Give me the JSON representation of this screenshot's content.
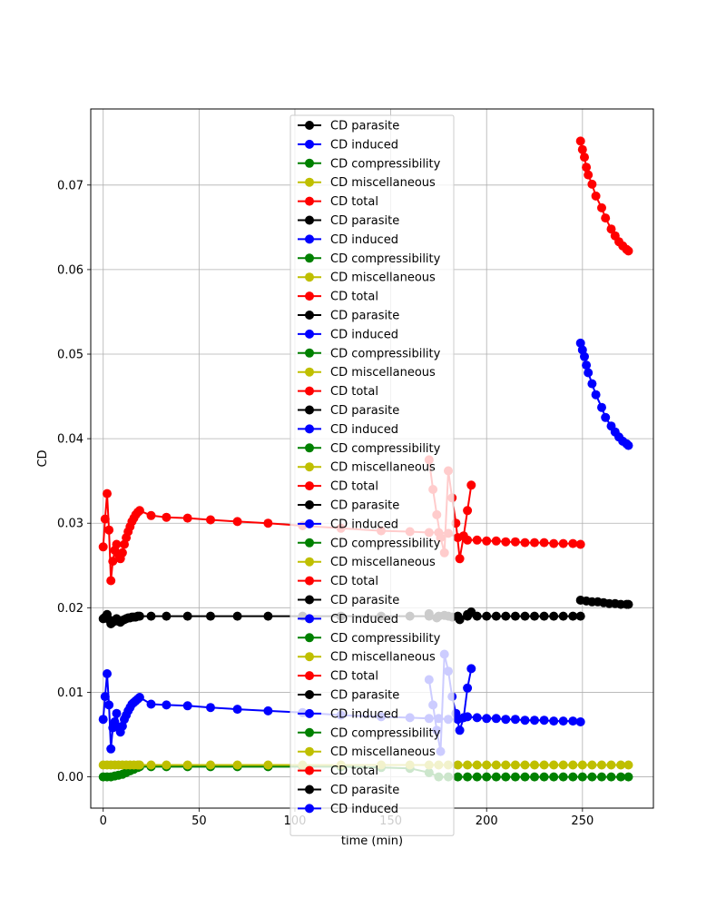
{
  "chart_data": {
    "type": "line",
    "title": "",
    "xlabel": "time (min)",
    "ylabel": "CD",
    "xlim": [
      -6.5,
      287
    ],
    "ylim": [
      -0.0037,
      0.079
    ],
    "xticks": [
      0,
      50,
      100,
      150,
      200,
      250
    ],
    "yticks": [
      0.0,
      0.01,
      0.02,
      0.03,
      0.04,
      0.05,
      0.06,
      0.07
    ],
    "ytick_labels": [
      "0.00",
      "0.01",
      "0.02",
      "0.03",
      "0.04",
      "0.05",
      "0.06",
      "0.07"
    ],
    "grid": true,
    "legend": {
      "placement": "upper-center",
      "entries": [
        {
          "label": "CD parasite",
          "color": "#000000"
        },
        {
          "label": "CD induced",
          "color": "#0000ff"
        },
        {
          "label": "CD compressibility",
          "color": "#008000"
        },
        {
          "label": "CD miscellaneous",
          "color": "#bfbf00"
        },
        {
          "label": "CD total",
          "color": "#ff0000"
        },
        {
          "label": "CD parasite",
          "color": "#000000"
        },
        {
          "label": "CD induced",
          "color": "#0000ff"
        },
        {
          "label": "CD compressibility",
          "color": "#008000"
        },
        {
          "label": "CD miscellaneous",
          "color": "#bfbf00"
        },
        {
          "label": "CD total",
          "color": "#ff0000"
        },
        {
          "label": "CD parasite",
          "color": "#000000"
        },
        {
          "label": "CD induced",
          "color": "#0000ff"
        },
        {
          "label": "CD compressibility",
          "color": "#008000"
        },
        {
          "label": "CD miscellaneous",
          "color": "#bfbf00"
        },
        {
          "label": "CD total",
          "color": "#ff0000"
        },
        {
          "label": "CD parasite",
          "color": "#000000"
        },
        {
          "label": "CD induced",
          "color": "#0000ff"
        },
        {
          "label": "CD compressibility",
          "color": "#008000"
        },
        {
          "label": "CD miscellaneous",
          "color": "#bfbf00"
        },
        {
          "label": "CD total",
          "color": "#ff0000"
        },
        {
          "label": "CD parasite",
          "color": "#000000"
        },
        {
          "label": "CD induced",
          "color": "#0000ff"
        },
        {
          "label": "CD compressibility",
          "color": "#008000"
        },
        {
          "label": "CD miscellaneous",
          "color": "#bfbf00"
        },
        {
          "label": "CD total",
          "color": "#ff0000"
        },
        {
          "label": "CD parasite",
          "color": "#000000"
        },
        {
          "label": "CD induced",
          "color": "#0000ff"
        },
        {
          "label": "CD compressibility",
          "color": "#008000"
        },
        {
          "label": "CD miscellaneous",
          "color": "#bfbf00"
        },
        {
          "label": "CD total",
          "color": "#ff0000"
        },
        {
          "label": "CD parasite",
          "color": "#000000"
        },
        {
          "label": "CD induced",
          "color": "#0000ff"
        },
        {
          "label": "CD compressibility",
          "color": "#008000"
        },
        {
          "label": "CD miscellaneous",
          "color": "#bfbf00"
        },
        {
          "label": "CD total",
          "color": "#ff0000"
        },
        {
          "label": "CD parasite",
          "color": "#000000"
        },
        {
          "label": "CD induced",
          "color": "#0000ff"
        }
      ]
    },
    "series": [
      {
        "name": "CD total",
        "color": "#ff0000",
        "x": [
          0,
          1,
          2,
          3,
          4,
          5,
          6,
          7,
          8,
          9,
          10,
          11,
          12,
          13,
          14,
          15,
          16,
          17,
          18,
          19,
          25,
          33,
          44,
          56,
          70,
          86,
          104,
          124,
          145,
          160,
          170,
          175,
          180,
          185,
          190,
          195,
          200,
          205,
          210,
          215,
          220,
          225,
          230,
          235,
          240,
          245,
          249
        ],
        "y": [
          0.0272,
          0.0305,
          0.0335,
          0.0292,
          0.0232,
          0.0255,
          0.0268,
          0.0275,
          0.0263,
          0.0258,
          0.0265,
          0.0275,
          0.0283,
          0.029,
          0.0296,
          0.0302,
          0.0306,
          0.031,
          0.0313,
          0.0315,
          0.0309,
          0.0307,
          0.0306,
          0.0304,
          0.0302,
          0.03,
          0.0297,
          0.0294,
          0.0291,
          0.029,
          0.0289,
          0.0289,
          0.0288,
          0.0283,
          0.028,
          0.028,
          0.0279,
          0.0279,
          0.0278,
          0.0278,
          0.0277,
          0.0277,
          0.0277,
          0.0276,
          0.0276,
          0.0276,
          0.0275
        ]
      },
      {
        "name": "CD total",
        "color": "#ff0000",
        "x": [
          170,
          172,
          174,
          176,
          178,
          180,
          182,
          184,
          186,
          188,
          190,
          192
        ],
        "y": [
          0.0375,
          0.034,
          0.031,
          0.0283,
          0.0265,
          0.0362,
          0.033,
          0.03,
          0.0258,
          0.0285,
          0.0315,
          0.0345
        ]
      },
      {
        "name": "CD total",
        "color": "#ff0000",
        "x": [
          249,
          250,
          251,
          252,
          253,
          255,
          257,
          260,
          262,
          265,
          267,
          269,
          271,
          273,
          274
        ],
        "y": [
          0.0752,
          0.0742,
          0.0733,
          0.0721,
          0.0712,
          0.0701,
          0.0687,
          0.0673,
          0.0661,
          0.0648,
          0.064,
          0.0633,
          0.0628,
          0.0624,
          0.0622
        ]
      },
      {
        "name": "CD parasite",
        "color": "#000000",
        "x": [
          0,
          1,
          2,
          3,
          4,
          5,
          6,
          7,
          8,
          9,
          10,
          11,
          12,
          13,
          14,
          15,
          16,
          17,
          18,
          19,
          25,
          33,
          44,
          56,
          70,
          86,
          104,
          124,
          145,
          160,
          170,
          175,
          180,
          185,
          190,
          195,
          200,
          205,
          210,
          215,
          220,
          225,
          230,
          235,
          240,
          245,
          249
        ],
        "y": [
          0.0187,
          0.0189,
          0.0192,
          0.0186,
          0.0181,
          0.0183,
          0.0185,
          0.0187,
          0.0184,
          0.0183,
          0.0185,
          0.0186,
          0.0187,
          0.0188,
          0.0188,
          0.0189,
          0.0189,
          0.0189,
          0.019,
          0.019,
          0.019,
          0.019,
          0.019,
          0.019,
          0.019,
          0.019,
          0.019,
          0.019,
          0.019,
          0.019,
          0.019,
          0.019,
          0.019,
          0.019,
          0.019,
          0.019,
          0.019,
          0.019,
          0.019,
          0.019,
          0.019,
          0.019,
          0.019,
          0.019,
          0.019,
          0.019,
          0.019
        ]
      },
      {
        "name": "CD parasite",
        "color": "#000000",
        "x": [
          170,
          174,
          178,
          182,
          186,
          190,
          192
        ],
        "y": [
          0.0193,
          0.0188,
          0.0191,
          0.0189,
          0.0186,
          0.0192,
          0.0195
        ]
      },
      {
        "name": "CD parasite",
        "color": "#000000",
        "x": [
          249,
          252,
          255,
          258,
          261,
          264,
          267,
          270,
          273,
          274
        ],
        "y": [
          0.0209,
          0.0208,
          0.0207,
          0.0207,
          0.0206,
          0.0205,
          0.0205,
          0.0204,
          0.0204,
          0.0204
        ]
      },
      {
        "name": "CD induced",
        "color": "#0000ff",
        "x": [
          0,
          1,
          2,
          3,
          4,
          5,
          6,
          7,
          8,
          9,
          10,
          11,
          12,
          13,
          14,
          15,
          16,
          17,
          18,
          19,
          25,
          33,
          44,
          56,
          70,
          86,
          104,
          124,
          145,
          160,
          170,
          175,
          180,
          185,
          190,
          195,
          200,
          205,
          210,
          215,
          220,
          225,
          230,
          235,
          240,
          245,
          249
        ],
        "y": [
          0.0068,
          0.0095,
          0.0122,
          0.0085,
          0.0033,
          0.0058,
          0.0065,
          0.0075,
          0.0058,
          0.0053,
          0.006,
          0.0068,
          0.0073,
          0.0078,
          0.0082,
          0.0086,
          0.0088,
          0.009,
          0.0092,
          0.0094,
          0.0086,
          0.0085,
          0.0084,
          0.0082,
          0.008,
          0.0078,
          0.0076,
          0.0073,
          0.0071,
          0.007,
          0.0069,
          0.0069,
          0.0068,
          0.0068,
          0.0071,
          0.007,
          0.0069,
          0.0069,
          0.0068,
          0.0068,
          0.0067,
          0.0067,
          0.0067,
          0.0066,
          0.0066,
          0.0066,
          0.0065
        ]
      },
      {
        "name": "CD induced",
        "color": "#0000ff",
        "x": [
          170,
          172,
          174,
          176,
          178,
          180,
          182,
          184,
          186,
          188,
          190,
          192
        ],
        "y": [
          0.0115,
          0.0085,
          0.0055,
          0.003,
          0.0145,
          0.0125,
          0.0095,
          0.0075,
          0.0055,
          0.007,
          0.0105,
          0.0128
        ]
      },
      {
        "name": "CD induced",
        "color": "#0000ff",
        "x": [
          249,
          250,
          251,
          252,
          253,
          255,
          257,
          260,
          262,
          265,
          267,
          269,
          271,
          273,
          274
        ],
        "y": [
          0.0513,
          0.0505,
          0.0497,
          0.0487,
          0.0478,
          0.0465,
          0.0452,
          0.0437,
          0.0425,
          0.0415,
          0.0408,
          0.0402,
          0.0397,
          0.0394,
          0.0392
        ]
      },
      {
        "name": "CD compressibility",
        "color": "#008000",
        "x": [
          0,
          2,
          4,
          6,
          8,
          10,
          12,
          14,
          16,
          18,
          19,
          25,
          33,
          44,
          56,
          70,
          86,
          104,
          124,
          145,
          160,
          170,
          175,
          180,
          185,
          190,
          195,
          200,
          205,
          210,
          215,
          220,
          225,
          230,
          235,
          240,
          245,
          250,
          255,
          260,
          265,
          270,
          274
        ],
        "y": [
          0.0,
          0.0,
          0.0,
          0.0001,
          0.0002,
          0.0003,
          0.0005,
          0.0007,
          0.0009,
          0.0011,
          0.0012,
          0.0012,
          0.0012,
          0.0012,
          0.0012,
          0.0012,
          0.0012,
          0.0012,
          0.0012,
          0.0011,
          0.001,
          0.0005,
          0.0,
          0.0,
          0.0,
          0.0,
          0.0,
          0.0,
          0.0,
          0.0,
          0.0,
          0.0,
          0.0,
          0.0,
          0.0,
          0.0,
          0.0,
          0.0,
          0.0,
          0.0,
          0.0,
          0.0,
          0.0
        ]
      },
      {
        "name": "CD miscellaneous",
        "color": "#bfbf00",
        "x": [
          0,
          2,
          4,
          6,
          8,
          10,
          12,
          14,
          16,
          18,
          19,
          25,
          33,
          44,
          56,
          70,
          86,
          104,
          124,
          145,
          160,
          170,
          175,
          180,
          185,
          190,
          195,
          200,
          205,
          210,
          215,
          220,
          225,
          230,
          235,
          240,
          245,
          250,
          255,
          260,
          265,
          270,
          274
        ],
        "y": [
          0.0014,
          0.0014,
          0.0014,
          0.0014,
          0.0014,
          0.0014,
          0.0014,
          0.0014,
          0.0014,
          0.0014,
          0.0014,
          0.0014,
          0.0014,
          0.0014,
          0.0014,
          0.0014,
          0.0014,
          0.0014,
          0.0014,
          0.0014,
          0.0014,
          0.0014,
          0.0014,
          0.0014,
          0.0014,
          0.0014,
          0.0014,
          0.0014,
          0.0014,
          0.0014,
          0.0014,
          0.0014,
          0.0014,
          0.0014,
          0.0014,
          0.0014,
          0.0014,
          0.0014,
          0.0014,
          0.0014,
          0.0014,
          0.0014,
          0.0014
        ]
      }
    ]
  }
}
